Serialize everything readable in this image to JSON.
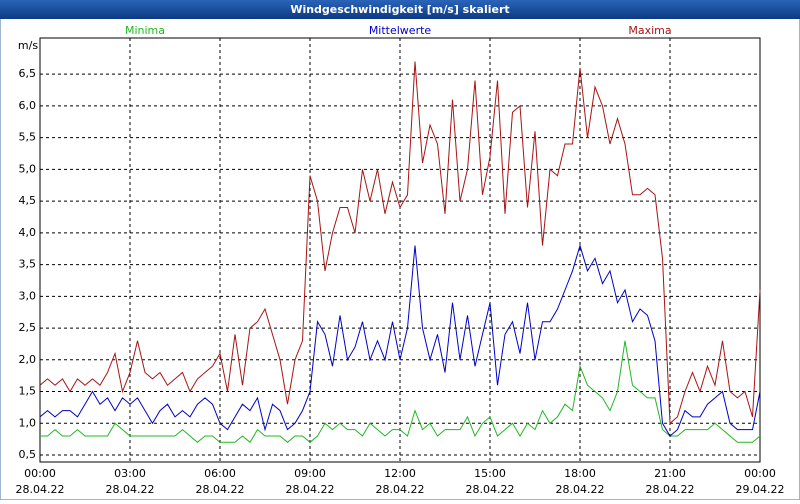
{
  "chart_data": {
    "type": "line",
    "title": "Windgeschwindigkeit [m/s] skaliert",
    "y_label": "m/s",
    "grid": true,
    "x": [
      0,
      0.25,
      0.5,
      0.75,
      1,
      1.25,
      1.5,
      1.75,
      2,
      2.25,
      2.5,
      2.75,
      3,
      3.25,
      3.5,
      3.75,
      4,
      4.25,
      4.5,
      4.75,
      5,
      5.25,
      5.5,
      5.75,
      6,
      6.25,
      6.5,
      6.75,
      7,
      7.25,
      7.5,
      7.75,
      8,
      8.25,
      8.5,
      8.75,
      9,
      9.25,
      9.5,
      9.75,
      10,
      10.25,
      10.5,
      10.75,
      11,
      11.25,
      11.5,
      11.75,
      12,
      12.25,
      12.5,
      12.75,
      13,
      13.25,
      13.5,
      13.75,
      14,
      14.25,
      14.5,
      14.75,
      15,
      15.25,
      15.5,
      15.75,
      16,
      16.25,
      16.5,
      16.75,
      17,
      17.25,
      17.5,
      17.75,
      18,
      18.25,
      18.5,
      18.75,
      19,
      19.25,
      19.5,
      19.75,
      20,
      20.25,
      20.5,
      20.75,
      21,
      21.25,
      21.5,
      21.75,
      22,
      22.25,
      22.5,
      22.75,
      23,
      23.25,
      23.5,
      23.75,
      24
    ],
    "xlim": [
      0,
      24
    ],
    "xticks": [
      {
        "value": 0,
        "label": "00:00",
        "date": "28.04.22"
      },
      {
        "value": 3,
        "label": "03:00",
        "date": "28.04.22"
      },
      {
        "value": 6,
        "label": "06:00",
        "date": "28.04.22"
      },
      {
        "value": 9,
        "label": "09:00",
        "date": "28.04.22"
      },
      {
        "value": 12,
        "label": "12:00",
        "date": "28.04.22"
      },
      {
        "value": 15,
        "label": "15:00",
        "date": "28.04.22"
      },
      {
        "value": 18,
        "label": "18:00",
        "date": "28.04.22"
      },
      {
        "value": 21,
        "label": "21:00",
        "date": "28.04.22"
      },
      {
        "value": 24,
        "label": "00:00",
        "date": "29.04.22"
      }
    ],
    "ylim": [
      0.39,
      7.07
    ],
    "yticks": [
      {
        "value": 0.5,
        "label": "0,5"
      },
      {
        "value": 1,
        "label": "1,0"
      },
      {
        "value": 1.5,
        "label": "1,5"
      },
      {
        "value": 2,
        "label": "2,0"
      },
      {
        "value": 2.5,
        "label": "2,5"
      },
      {
        "value": 3,
        "label": "3,0"
      },
      {
        "value": 3.5,
        "label": "3,5"
      },
      {
        "value": 4,
        "label": "4,0"
      },
      {
        "value": 4.5,
        "label": "4,5"
      },
      {
        "value": 5,
        "label": "5,0"
      },
      {
        "value": 5.5,
        "label": "5,5"
      },
      {
        "value": 6,
        "label": "6,0"
      },
      {
        "value": 6.5,
        "label": "6,5"
      }
    ],
    "series": [
      {
        "name": "Minima",
        "color": "#22b822",
        "values": [
          0.8,
          0.8,
          0.9,
          0.8,
          0.8,
          0.9,
          0.8,
          0.8,
          0.8,
          0.8,
          1.0,
          0.9,
          0.8,
          0.8,
          0.8,
          0.8,
          0.8,
          0.8,
          0.8,
          0.9,
          0.8,
          0.7,
          0.8,
          0.8,
          0.7,
          0.7,
          0.7,
          0.8,
          0.7,
          0.9,
          0.8,
          0.8,
          0.8,
          0.7,
          0.8,
          0.8,
          0.7,
          0.8,
          1.0,
          0.9,
          1.0,
          0.9,
          0.9,
          0.8,
          1.0,
          0.9,
          0.8,
          0.9,
          0.9,
          0.8,
          1.2,
          0.9,
          1.0,
          0.8,
          0.9,
          0.9,
          0.9,
          1.1,
          0.8,
          1.0,
          1.1,
          0.8,
          0.9,
          1.0,
          0.8,
          1.0,
          0.9,
          1.2,
          1.0,
          1.1,
          1.3,
          1.2,
          1.9,
          1.6,
          1.5,
          1.4,
          1.2,
          1.5,
          2.3,
          1.6,
          1.5,
          1.4,
          1.4,
          0.9,
          0.8,
          0.8,
          0.9,
          0.9,
          0.9,
          0.9,
          1.0,
          0.9,
          0.8,
          0.7,
          0.7,
          0.7,
          0.8
        ]
      },
      {
        "name": "Mittelwerte",
        "color": "#0000c8",
        "values": [
          1.1,
          1.2,
          1.1,
          1.2,
          1.2,
          1.1,
          1.3,
          1.5,
          1.3,
          1.4,
          1.2,
          1.4,
          1.3,
          1.4,
          1.2,
          1.0,
          1.2,
          1.3,
          1.1,
          1.2,
          1.1,
          1.3,
          1.4,
          1.3,
          1.0,
          0.9,
          1.1,
          1.3,
          1.2,
          1.4,
          0.9,
          1.3,
          1.2,
          0.9,
          1.0,
          1.2,
          1.5,
          2.6,
          2.4,
          1.9,
          2.7,
          2.0,
          2.2,
          2.6,
          2.0,
          2.3,
          2.0,
          2.6,
          2.0,
          2.5,
          3.8,
          2.5,
          2.0,
          2.4,
          1.8,
          2.9,
          2.0,
          2.7,
          1.9,
          2.4,
          2.9,
          1.6,
          2.4,
          2.6,
          2.1,
          2.9,
          2.0,
          2.6,
          2.6,
          2.8,
          3.1,
          3.4,
          3.8,
          3.4,
          3.6,
          3.2,
          3.4,
          2.9,
          3.1,
          2.6,
          2.8,
          2.7,
          2.3,
          1.0,
          0.8,
          0.9,
          1.2,
          1.1,
          1.1,
          1.3,
          1.4,
          1.5,
          1.0,
          0.9,
          0.9,
          0.9,
          1.5
        ]
      },
      {
        "name": "Maxima",
        "color": "#a81414",
        "values": [
          1.6,
          1.7,
          1.6,
          1.7,
          1.5,
          1.7,
          1.6,
          1.7,
          1.6,
          1.8,
          2.1,
          1.5,
          1.8,
          2.3,
          1.8,
          1.7,
          1.8,
          1.6,
          1.7,
          1.8,
          1.5,
          1.7,
          1.8,
          1.9,
          2.1,
          1.5,
          2.4,
          1.6,
          2.5,
          2.6,
          2.8,
          2.4,
          2.0,
          1.3,
          2.0,
          2.3,
          4.9,
          4.5,
          3.4,
          4.0,
          4.4,
          4.4,
          4.0,
          5.0,
          4.5,
          5.0,
          4.3,
          4.8,
          4.4,
          4.6,
          6.7,
          5.1,
          5.7,
          5.4,
          4.3,
          6.1,
          4.5,
          5.0,
          6.4,
          4.6,
          5.2,
          6.4,
          4.3,
          5.9,
          6.0,
          4.4,
          5.6,
          3.8,
          5.0,
          4.9,
          5.4,
          5.4,
          6.6,
          5.5,
          6.3,
          6.0,
          5.4,
          5.8,
          5.4,
          4.6,
          4.6,
          4.7,
          4.6,
          3.6,
          1.0,
          1.1,
          1.5,
          1.8,
          1.5,
          1.9,
          1.6,
          2.3,
          1.5,
          1.4,
          1.5,
          1.1,
          3.1
        ]
      }
    ]
  }
}
